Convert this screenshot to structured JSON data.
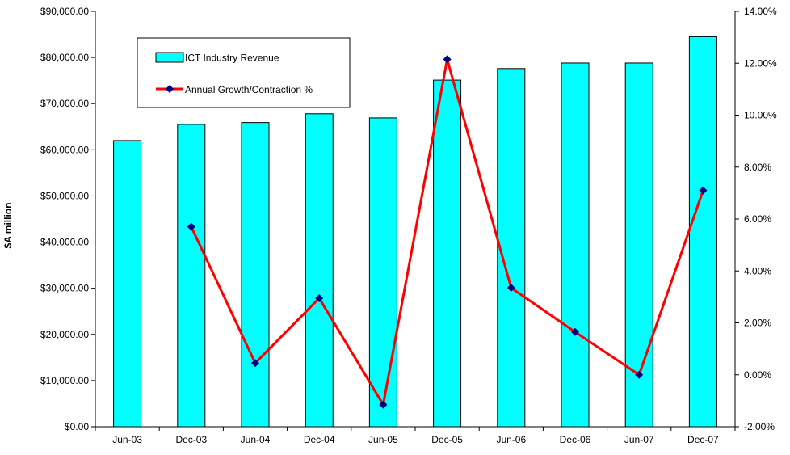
{
  "chart_data": {
    "type": "bar",
    "title": "",
    "categories": [
      "Jun-03",
      "Dec-03",
      "Jun-04",
      "Dec-04",
      "Jun-05",
      "Dec-05",
      "Jun-06",
      "Dec-06",
      "Jun-07",
      "Dec-07"
    ],
    "ylabel": "$A million",
    "y_left": {
      "min": 0,
      "max": 90000,
      "ticks": [
        0,
        10000,
        20000,
        30000,
        40000,
        50000,
        60000,
        70000,
        80000,
        90000
      ],
      "tick_labels": [
        "$0.00",
        "$10,000.00",
        "$20,000.00",
        "$30,000.00",
        "$40,000.00",
        "$50,000.00",
        "$60,000.00",
        "$70,000.00",
        "$80,000.00",
        "$90,000.00"
      ]
    },
    "y_right": {
      "min": -2,
      "max": 14,
      "ticks": [
        -2,
        0,
        2,
        4,
        6,
        8,
        10,
        12,
        14
      ],
      "tick_labels": [
        "-2.00%",
        "0.00%",
        "2.00%",
        "4.00%",
        "6.00%",
        "8.00%",
        "10.00%",
        "12.00%",
        "14.00%"
      ]
    },
    "series": [
      {
        "name": "ICT Industry Revenue",
        "kind": "bar",
        "axis": "left",
        "color": "#00FFFF",
        "values": [
          62000,
          65500,
          65900,
          67800,
          66900,
          75100,
          77600,
          78800,
          78800,
          84500
        ]
      },
      {
        "name": "Annual Growth/Contraction %",
        "kind": "line",
        "axis": "right",
        "color": "#FF0000",
        "marker_color": "#000080",
        "values": [
          null,
          5.7,
          0.45,
          2.95,
          -1.15,
          12.15,
          3.35,
          1.65,
          0.0,
          7.1
        ]
      }
    ],
    "legend": {
      "position": "top-left"
    },
    "grid": false
  }
}
